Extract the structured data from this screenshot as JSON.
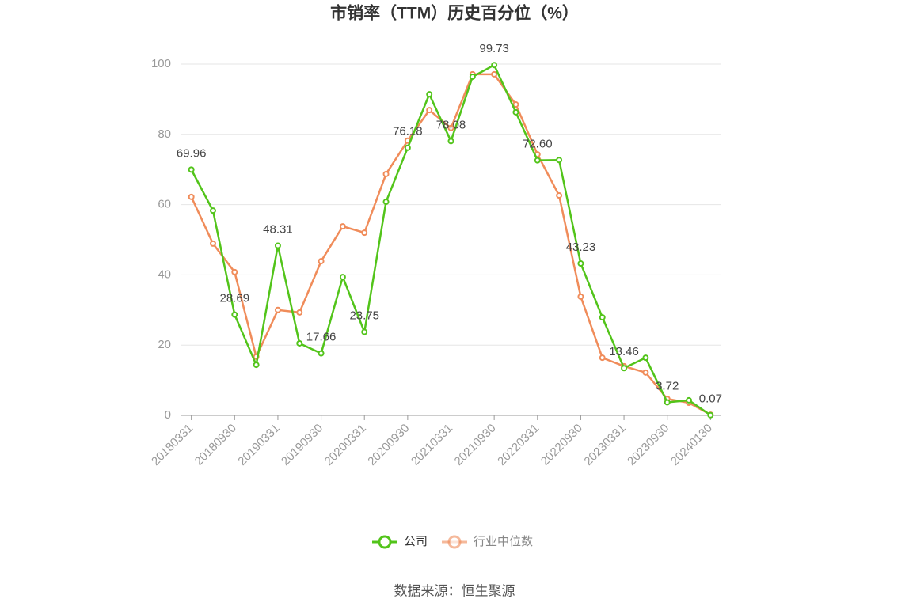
{
  "chart_data": {
    "type": "line",
    "title": "市销率（TTM）历史百分位（%）",
    "source": "数据来源：恒生聚源",
    "categories": [
      "20180331",
      null,
      "20180930",
      null,
      "20190331",
      null,
      "20190930",
      null,
      "20200331",
      null,
      "20200930",
      null,
      "20210331",
      null,
      "20210930",
      null,
      "20220331",
      null,
      "20220930",
      null,
      "20230331",
      null,
      "20230930",
      null,
      "20240130"
    ],
    "series": [
      {
        "name": "公司",
        "color": "#52c41a",
        "values": [
          69.96,
          58.3,
          28.69,
          14.4,
          48.31,
          20.5,
          17.66,
          39.4,
          23.75,
          60.8,
          76.18,
          91.4,
          78.08,
          96.4,
          99.73,
          86.3,
          72.6,
          72.7,
          43.23,
          27.9,
          13.46,
          16.4,
          3.72,
          4.3,
          0.07
        ],
        "value_labels": [
          "69.96",
          null,
          "28.69",
          null,
          "48.31",
          null,
          "17.66",
          null,
          "23.75",
          null,
          "76.18",
          null,
          "78.08",
          null,
          "99.73",
          null,
          "72.60",
          null,
          "43.23",
          null,
          "13.46",
          null,
          "3.72",
          null,
          "0.07"
        ]
      },
      {
        "name": "行业中位数",
        "color": "#f08c5a",
        "values": [
          62.2,
          48.9,
          40.8,
          16.7,
          30.0,
          29.3,
          43.9,
          53.8,
          52.0,
          68.7,
          78.2,
          86.9,
          81.8,
          97.1,
          97.1,
          88.5,
          74.3,
          62.6,
          33.8,
          16.4,
          14.0,
          12.2,
          4.7,
          3.6,
          0.2
        ]
      }
    ],
    "ylim": [
      0,
      100
    ],
    "yticks": [
      0,
      20,
      40,
      60,
      80,
      100
    ],
    "grid": true,
    "legend": "bottom"
  }
}
